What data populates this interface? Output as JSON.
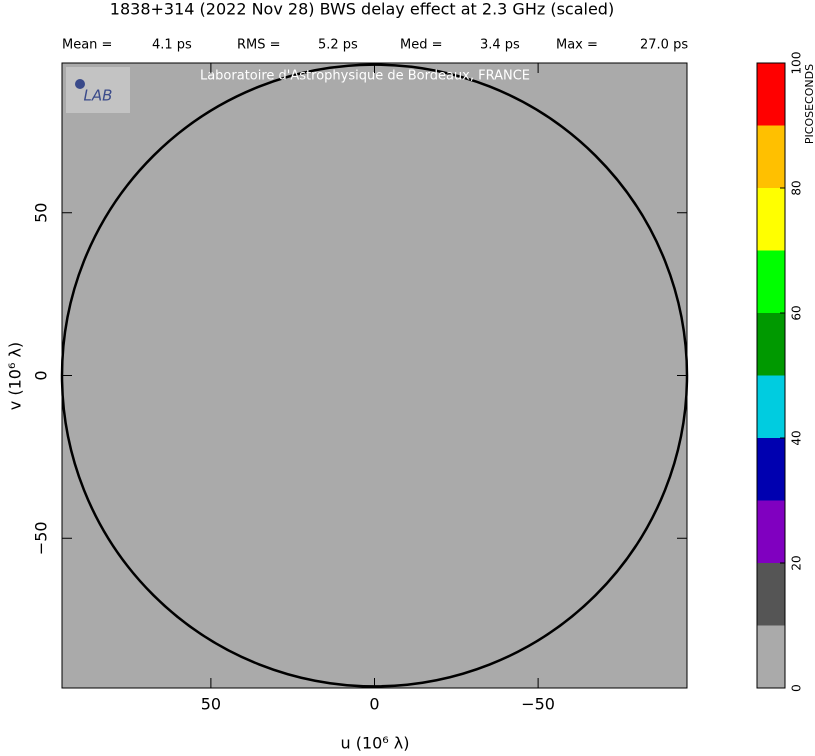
{
  "chart_data": {
    "type": "heatmap",
    "title": "1838+314  (2022 Nov 28)   BWS delay effect at  2.3 GHz (scaled)",
    "stats": [
      {
        "label": "Mean =",
        "value": "4.1 ps"
      },
      {
        "label": "RMS =",
        "value": "5.2 ps"
      },
      {
        "label": "Med =",
        "value": "3.4 ps"
      },
      {
        "label": "Max =",
        "value": "27.0 ps"
      }
    ],
    "watermark": "Laboratoire d'Astrophysique de Bordeaux, FRANCE",
    "logo": "LAB",
    "xlabel": "u  (10⁶ λ)",
    "ylabel": "v  (10⁶ λ)",
    "xlim": [
      95.5,
      -95.5
    ],
    "ylim": [
      -96,
      96
    ],
    "xticks": [
      50,
      0,
      {
        "value": -50,
        "label": "−50"
      }
    ],
    "yticks": [
      {
        "value": -50,
        "label": "−50"
      },
      0,
      50
    ],
    "background_color": "#aaaaaa",
    "circle_radius": 95.5,
    "colorbar": {
      "label": "PICOSECONDS",
      "bins": [
        0,
        10,
        20,
        30,
        40,
        50,
        60,
        70,
        80,
        90,
        100
      ],
      "colors": [
        "#aaaaaa",
        "#555555",
        "#8000c0",
        "#0000b0",
        "#00cce0",
        "#009900",
        "#00ff00",
        "#ffff00",
        "#ffc000",
        "#ff0000"
      ],
      "ticks": [
        0,
        20,
        40,
        60,
        80,
        100
      ]
    }
  }
}
